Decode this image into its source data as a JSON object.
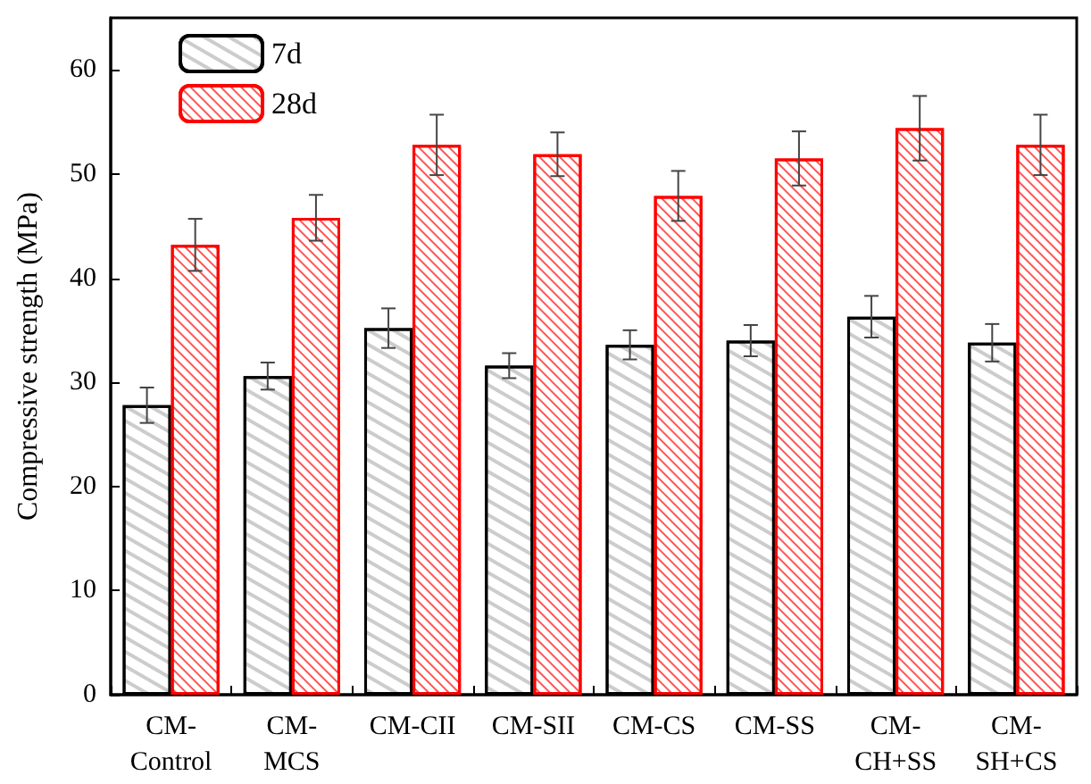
{
  "chart_data": {
    "type": "bar",
    "ylabel": "Compressive strength (MPa)",
    "categories": [
      "CM-\nControl",
      "CM-\nMCS",
      "CM-CII",
      "CM-SII",
      "CM-CS",
      "CM-SS",
      "CM-\nCH+SS",
      "CM-\nSH+CS"
    ],
    "series": [
      {
        "name": "7d",
        "color": "#000000",
        "values": [
          27.8,
          30.6,
          35.2,
          31.6,
          33.6,
          34.0,
          36.3,
          33.8
        ],
        "errors": [
          1.7,
          1.3,
          1.9,
          1.2,
          1.4,
          1.5,
          2.0,
          1.8
        ]
      },
      {
        "name": "28d",
        "color": "#ff0000",
        "values": [
          43.2,
          45.8,
          52.8,
          51.9,
          47.9,
          51.5,
          54.4,
          52.8
        ],
        "errors": [
          2.5,
          2.2,
          2.9,
          2.1,
          2.4,
          2.6,
          3.1,
          2.9
        ]
      }
    ],
    "ylim": [
      0,
      65
    ],
    "yticks": [
      0,
      10,
      20,
      30,
      40,
      50,
      60
    ],
    "grid": false,
    "legend": "top left"
  }
}
